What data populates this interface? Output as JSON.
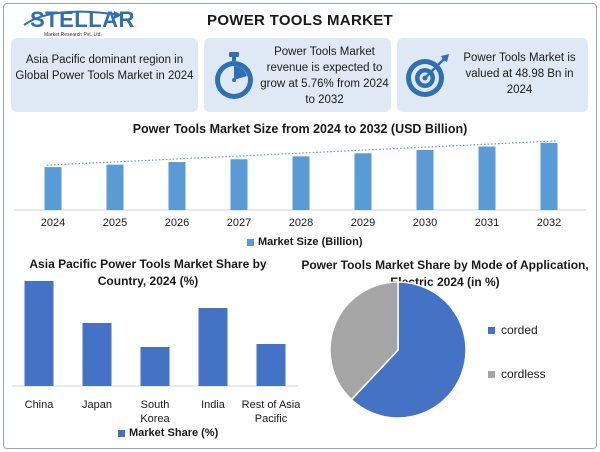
{
  "logo": {
    "name": "STELLAR",
    "subtitle": "Market Research Pvt. Ltd."
  },
  "title": "POWER TOOLS MARKET",
  "cards": [
    {
      "text": "Asia Pacific dominant region in Global Power Tools Market in 2024"
    },
    {
      "text": "Power Tools Market revenue is expected to grow at 5.76% from 2024 to 2032",
      "icon": "stopwatch-icon"
    },
    {
      "text": "Power Tools Market is valued at 48.98 Bn in 2024",
      "icon": "target-icon"
    }
  ],
  "colors": {
    "bar": "#5b9bd5",
    "bar_dark": "#4472c4",
    "accent": "#2f6fb3",
    "card_bg": "#dfe9f5",
    "pie_gray": "#a5a5a5"
  },
  "chart_data": [
    {
      "type": "bar",
      "title": "Power Tools Market Size from 2024 to 2032 (USD Billion)",
      "categories": [
        "2024",
        "2025",
        "2026",
        "2027",
        "2028",
        "2029",
        "2030",
        "2031",
        "2032"
      ],
      "series": [
        {
          "name": "Market Size (Billion)",
          "values": [
            48.98,
            51.8,
            54.8,
            58.0,
            61.3,
            64.8,
            68.6,
            72.5,
            76.7
          ]
        }
      ],
      "trendline": true,
      "ylim": [
        0,
        80
      ],
      "legend": "bottom",
      "grid": false
    },
    {
      "type": "bar",
      "title": "Asia Pacific Power Tools Market Share by Country, 2024 (%)",
      "categories": [
        "China",
        "Japan",
        "South Korea",
        "India",
        "Rest of Asia Pacific"
      ],
      "series": [
        {
          "name": "Market Share (%)",
          "values": [
            35,
            21,
            13,
            26,
            14
          ]
        }
      ],
      "ylim": [
        0,
        38
      ],
      "legend": "bottom",
      "grid": false
    },
    {
      "type": "pie",
      "title": "Power Tools Market Share by Mode of Application, Electric 2024 (in %)",
      "labels": [
        "corded",
        "cordless"
      ],
      "values": [
        62,
        38
      ],
      "colors": [
        "#4472c4",
        "#a5a5a5"
      ],
      "legend": "right"
    }
  ]
}
